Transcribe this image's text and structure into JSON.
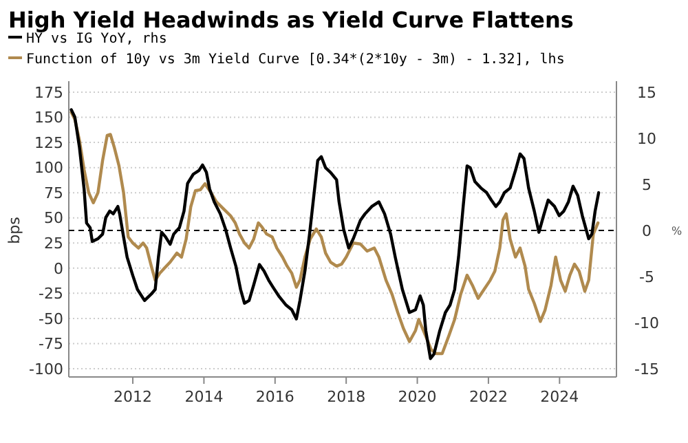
{
  "chart_data": {
    "type": "line",
    "title": "High Yield Headwinds as Yield Curve Flattens",
    "ylabel": "bps",
    "y2label": "%",
    "legend": "top left",
    "grid": "y",
    "xlim": [
      2010.2,
      2025.6
    ],
    "xticks": [
      2012,
      2014,
      2016,
      2018,
      2020,
      2022,
      2024
    ],
    "ylim": [
      -100,
      175
    ],
    "yticks": [
      -100,
      -75,
      -50,
      -25,
      0,
      25,
      50,
      75,
      100,
      125,
      150,
      175
    ],
    "y2lim": [
      -15,
      15
    ],
    "y2ticks": [
      -15,
      -10,
      -5,
      0,
      5,
      10,
      15
    ],
    "ref_lines": [
      {
        "axis": "y2",
        "value": 0,
        "line_style": "dashed",
        "color": "#000000"
      }
    ],
    "series": [
      {
        "name": "HY vs IG YoY, rhs",
        "color": "#000000",
        "axis": "y2",
        "x": [
          2010.27,
          2010.37,
          2010.5,
          2010.63,
          2010.7,
          2010.8,
          2010.86,
          2011.02,
          2011.15,
          2011.24,
          2011.35,
          2011.45,
          2011.58,
          2011.63,
          2011.74,
          2011.84,
          2012.0,
          2012.13,
          2012.33,
          2012.52,
          2012.63,
          2012.72,
          2012.81,
          2012.92,
          2013.05,
          2013.15,
          2013.31,
          2013.44,
          2013.54,
          2013.7,
          2013.86,
          2013.96,
          2014.07,
          2014.16,
          2014.29,
          2014.46,
          2014.61,
          2014.75,
          2014.9,
          2015.03,
          2015.14,
          2015.27,
          2015.4,
          2015.56,
          2015.69,
          2015.82,
          2015.95,
          2016.12,
          2016.31,
          2016.47,
          2016.6,
          2016.7,
          2016.84,
          2016.97,
          2017.1,
          2017.2,
          2017.3,
          2017.42,
          2017.56,
          2017.73,
          2017.8,
          2017.93,
          2018.07,
          2018.2,
          2018.4,
          2018.53,
          2018.72,
          2018.92,
          2019.08,
          2019.25,
          2019.38,
          2019.58,
          2019.78,
          2019.95,
          2020.08,
          2020.17,
          2020.24,
          2020.37,
          2020.47,
          2020.63,
          2020.79,
          2020.92,
          2021.05,
          2021.16,
          2021.29,
          2021.4,
          2021.49,
          2021.62,
          2021.79,
          2021.95,
          2022.08,
          2022.21,
          2022.32,
          2022.45,
          2022.61,
          2022.76,
          2022.89,
          2023.0,
          2023.13,
          2023.29,
          2023.42,
          2023.55,
          2023.68,
          2023.86,
          2023.99,
          2024.12,
          2024.25,
          2024.38,
          2024.51,
          2024.64,
          2024.82,
          2024.91,
          2025.0,
          2025.1
        ],
        "values": [
          13.1,
          12.3,
          9.0,
          4.5,
          0.8,
          0.3,
          -1.2,
          -0.9,
          -0.4,
          1.4,
          2.1,
          1.8,
          2.6,
          1.8,
          -0.7,
          -2.9,
          -4.9,
          -6.4,
          -7.6,
          -6.9,
          -6.4,
          -2.9,
          -0.2,
          -0.7,
          -1.5,
          -0.4,
          0.3,
          2.1,
          5.1,
          6.1,
          6.5,
          7.1,
          6.3,
          4.5,
          3.1,
          1.8,
          0.1,
          -1.9,
          -3.9,
          -6.4,
          -7.9,
          -7.6,
          -5.9,
          -3.7,
          -4.4,
          -5.4,
          -6.2,
          -7.2,
          -8.1,
          -8.6,
          -9.6,
          -7.6,
          -4.4,
          -0.4,
          4.1,
          7.6,
          8.0,
          6.8,
          6.3,
          5.5,
          3.1,
          0.1,
          -1.9,
          -0.9,
          1.1,
          1.8,
          2.6,
          3.1,
          1.8,
          -0.4,
          -2.9,
          -6.4,
          -8.9,
          -8.6,
          -7.1,
          -8.1,
          -10.9,
          -13.9,
          -13.4,
          -10.9,
          -8.9,
          -8.1,
          -6.4,
          -2.9,
          2.6,
          7.0,
          6.8,
          5.3,
          4.6,
          4.1,
          3.3,
          2.6,
          3.1,
          4.1,
          4.6,
          6.5,
          8.3,
          7.8,
          4.6,
          2.1,
          -0.2,
          1.6,
          3.3,
          2.6,
          1.6,
          2.1,
          3.1,
          4.8,
          3.8,
          1.6,
          -0.9,
          -0.4,
          2.1,
          4.1
        ]
      },
      {
        "name": "Function of 10y vs 3m Yield Curve [0.34*(2*10y - 3m) - 1.32], lhs",
        "color": "#b08a4e",
        "x": [
          2010.27,
          2010.37,
          2010.5,
          2010.63,
          2010.76,
          2010.89,
          2011.02,
          2011.15,
          2011.28,
          2011.37,
          2011.48,
          2011.61,
          2011.74,
          2011.87,
          2012.0,
          2012.16,
          2012.29,
          2012.39,
          2012.52,
          2012.63,
          2012.76,
          2012.89,
          2013.05,
          2013.24,
          2013.37,
          2013.5,
          2013.63,
          2013.76,
          2013.9,
          2014.03,
          2014.2,
          2014.35,
          2014.55,
          2014.75,
          2014.88,
          2015.0,
          2015.14,
          2015.27,
          2015.4,
          2015.53,
          2015.63,
          2015.76,
          2015.92,
          2016.05,
          2016.21,
          2016.34,
          2016.47,
          2016.6,
          2016.7,
          2016.84,
          2016.99,
          2017.16,
          2017.3,
          2017.42,
          2017.56,
          2017.73,
          2017.87,
          2018.0,
          2018.2,
          2018.4,
          2018.59,
          2018.79,
          2018.92,
          2019.12,
          2019.29,
          2019.45,
          2019.61,
          2019.78,
          2019.95,
          2020.04,
          2020.17,
          2020.3,
          2020.39,
          2020.53,
          2020.7,
          2020.89,
          2021.05,
          2021.22,
          2021.4,
          2021.55,
          2021.71,
          2021.88,
          2022.05,
          2022.18,
          2022.32,
          2022.41,
          2022.5,
          2022.61,
          2022.76,
          2022.89,
          2023.03,
          2023.13,
          2023.29,
          2023.46,
          2023.59,
          2023.76,
          2023.89,
          2024.03,
          2024.16,
          2024.29,
          2024.42,
          2024.55,
          2024.71,
          2024.82,
          2024.95,
          2025.08
        ],
        "values": [
          155,
          148,
          127,
          98,
          75,
          65,
          75,
          107,
          132,
          133,
          120,
          102,
          75,
          31,
          25,
          20,
          25,
          20,
          2,
          -12,
          -5,
          0,
          6,
          15,
          11,
          29,
          61,
          77,
          78,
          84,
          75,
          66,
          59,
          52,
          45,
          34,
          25,
          20,
          29,
          45,
          41,
          34,
          31,
          20,
          11,
          2,
          -5,
          -19,
          -12,
          11,
          29,
          39,
          31,
          15,
          6,
          2,
          4,
          11,
          25,
          24,
          17,
          20,
          11,
          -12,
          -26,
          -44,
          -60,
          -73,
          -62,
          -51,
          -62,
          -73,
          -81,
          -85,
          -85,
          -67,
          -51,
          -26,
          -7,
          -17,
          -30,
          -21,
          -12,
          -3,
          20,
          48,
          54,
          29,
          11,
          20,
          2,
          -21,
          -35,
          -53,
          -42,
          -17,
          11,
          -12,
          -23,
          -7,
          4,
          -3,
          -23,
          -12,
          34,
          45
        ]
      }
    ]
  }
}
